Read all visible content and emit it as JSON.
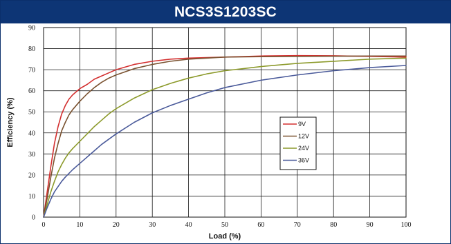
{
  "title": "NCS3S1203SC",
  "chart_data": {
    "type": "line",
    "title": "NCS3S1203SC",
    "xlabel": "Load  (%)",
    "ylabel": "Efficiency  (%)",
    "xlim": [
      0,
      100
    ],
    "ylim": [
      0,
      90
    ],
    "xticks": [
      0,
      10,
      20,
      30,
      40,
      50,
      60,
      70,
      80,
      90,
      100
    ],
    "yticks": [
      0,
      10,
      20,
      30,
      40,
      50,
      60,
      70,
      80,
      90
    ],
    "grid": true,
    "legend_position": "right-center",
    "series": [
      {
        "name": "9V",
        "color": "#d32f2f",
        "x": [
          0,
          1,
          2,
          3,
          4,
          5,
          6,
          7,
          8,
          10,
          12,
          14,
          16,
          18,
          20,
          25,
          30,
          35,
          40,
          50,
          60,
          70,
          80,
          90,
          100
        ],
        "y": [
          0,
          12,
          24,
          35,
          43,
          49,
          53,
          56,
          58,
          61,
          63,
          65.5,
          67,
          68.5,
          70,
          72.5,
          74,
          75,
          75.5,
          76,
          76.5,
          76.7,
          76.6,
          76.3,
          76
        ]
      },
      {
        "name": "12V",
        "color": "#7a5230",
        "x": [
          0,
          1,
          2,
          3,
          4,
          5,
          6,
          7,
          8,
          10,
          12,
          14,
          16,
          18,
          20,
          25,
          30,
          35,
          40,
          50,
          60,
          70,
          80,
          90,
          100
        ],
        "y": [
          0,
          9,
          19,
          28,
          35,
          41,
          45,
          48.5,
          51,
          55,
          58.5,
          61.5,
          64,
          66,
          67.5,
          70.5,
          72.5,
          74,
          75,
          76,
          76.2,
          76.3,
          76.4,
          76.5,
          76.5
        ]
      },
      {
        "name": "24V",
        "color": "#8c9a2b",
        "x": [
          0,
          1,
          2,
          3,
          4,
          5,
          6,
          7,
          8,
          10,
          12,
          14,
          16,
          18,
          20,
          25,
          30,
          35,
          40,
          45,
          50,
          60,
          70,
          80,
          90,
          100
        ],
        "y": [
          0,
          6,
          12,
          17,
          21.5,
          25,
          28,
          30.5,
          32.5,
          36,
          39.5,
          43,
          46,
          49,
          51.5,
          56.5,
          60.5,
          63.5,
          66,
          68,
          69.5,
          71.5,
          73,
          74,
          75,
          75.5
        ]
      },
      {
        "name": "36V",
        "color": "#4a5a9a",
        "x": [
          0,
          1,
          2,
          3,
          4,
          5,
          6,
          8,
          10,
          12,
          14,
          16,
          18,
          20,
          25,
          30,
          35,
          40,
          45,
          50,
          60,
          70,
          80,
          90,
          100
        ],
        "y": [
          0,
          4.5,
          8.5,
          12,
          14.5,
          17,
          19,
          22.5,
          25.5,
          28.5,
          31.5,
          34.5,
          37,
          39.5,
          45,
          49.5,
          53,
          56,
          59,
          61.5,
          65,
          67.5,
          69.5,
          71,
          72
        ]
      }
    ]
  }
}
